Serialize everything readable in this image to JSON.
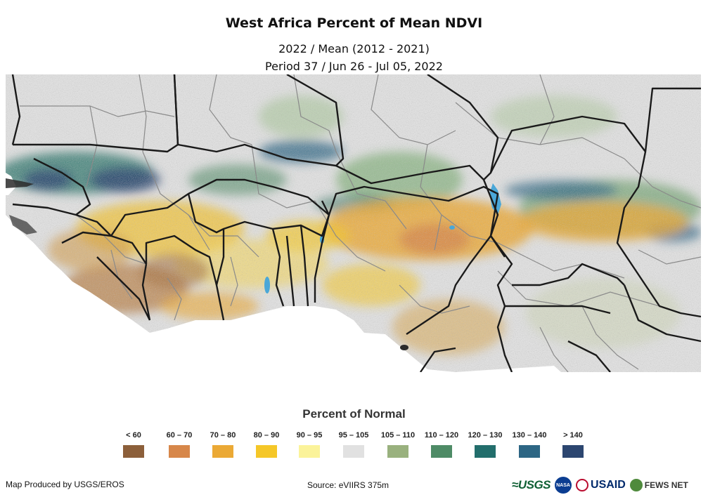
{
  "header": {
    "title": "West Africa Percent of Mean NDVI",
    "subtitle_line1": "2022 / Mean (2012 - 2021)",
    "subtitle_line2": "Period 37 / Jun 26 - Jul 05, 2022"
  },
  "legend": {
    "title": "Percent of Normal",
    "items": [
      {
        "label": "< 60",
        "color": "#8c5f3a"
      },
      {
        "label": "60 – 70",
        "color": "#d7874a"
      },
      {
        "label": "70 – 80",
        "color": "#eba935"
      },
      {
        "label": "80 – 90",
        "color": "#f5c728"
      },
      {
        "label": "90 – 95",
        "color": "#fbf39a"
      },
      {
        "label": "95 – 105",
        "color": "#e1e1e1"
      },
      {
        "label": "105 – 110",
        "color": "#99b17e"
      },
      {
        "label": "110 – 120",
        "color": "#4e8b66"
      },
      {
        "label": "120 – 130",
        "color": "#226e6c"
      },
      {
        "label": "130 – 140",
        "color": "#2d6684"
      },
      {
        "label": "> 140",
        "color": "#2c4670"
      }
    ]
  },
  "footer": {
    "producer": "Map Produced by USGS/EROS",
    "source": "Source: eVIIRS 375m"
  },
  "logos": {
    "usgs": "≈USGS",
    "nasa": "NASA",
    "usaid": "USAID",
    "fews": "FEWS NET"
  }
}
